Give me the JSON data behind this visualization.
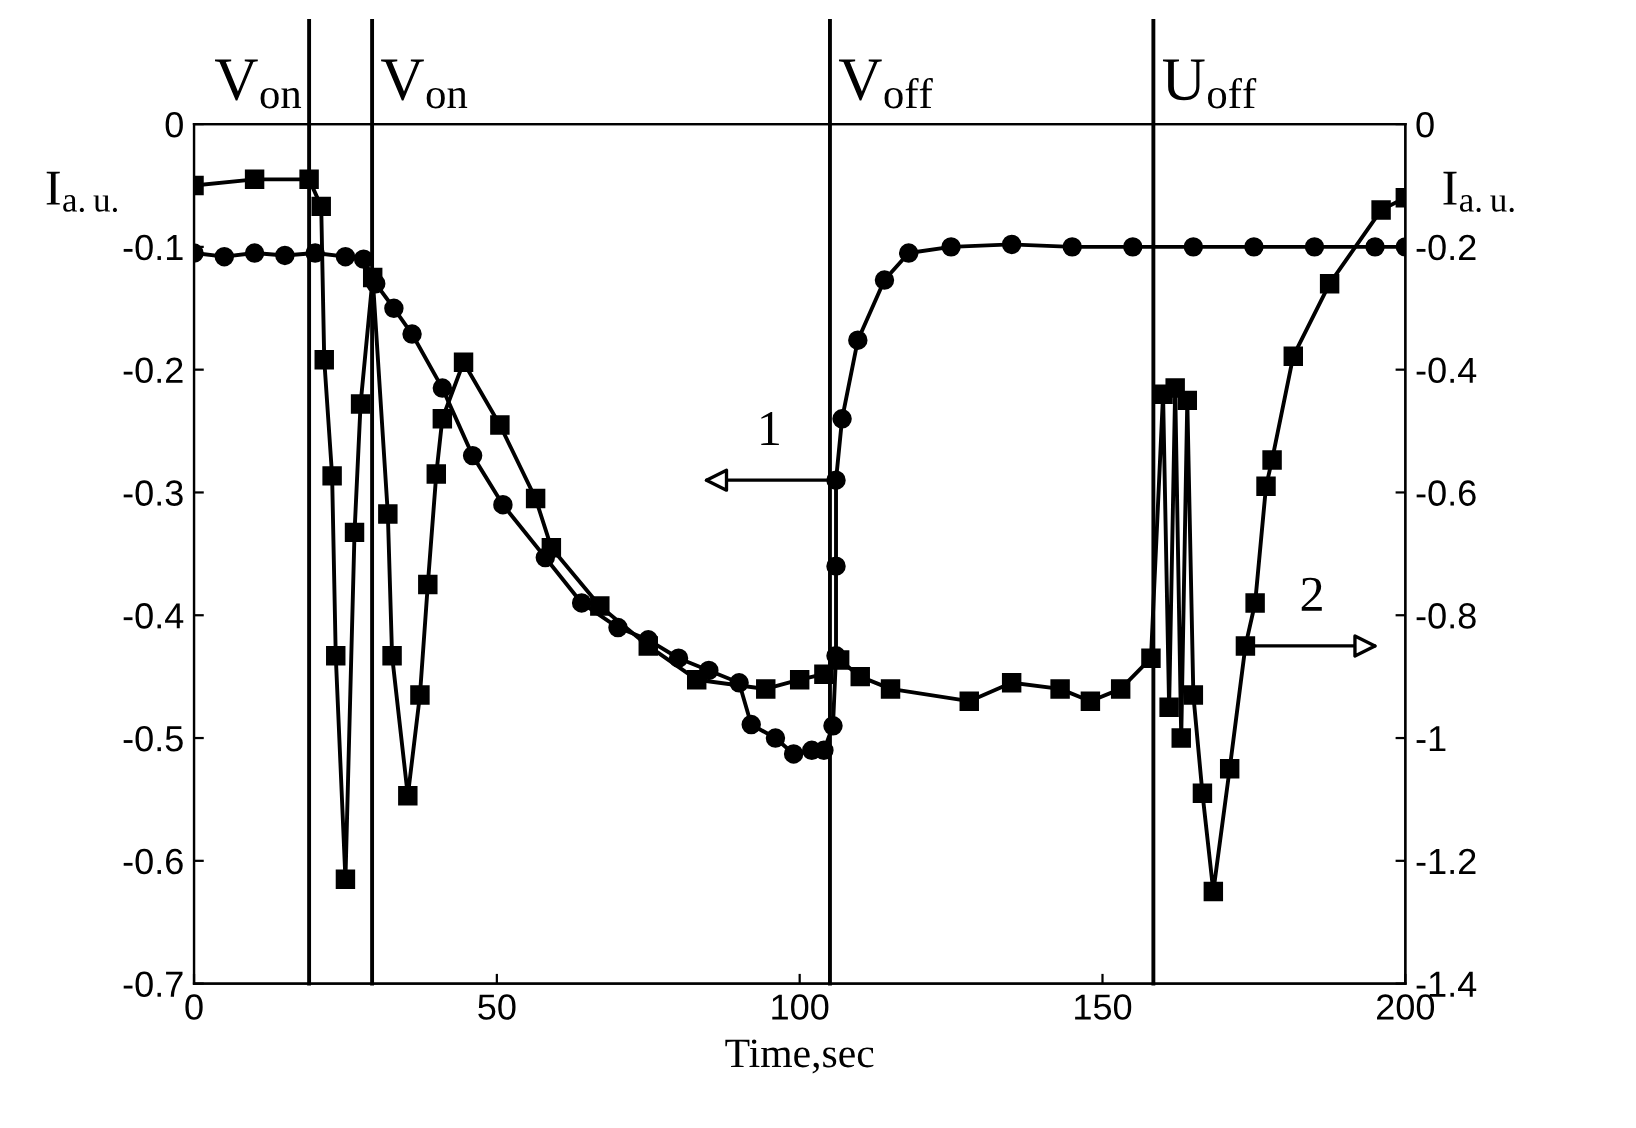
{
  "chart_data": {
    "type": "line",
    "xlabel": "Time,sec",
    "ylabel": "I$_{a.u.}$",
    "y2label": "I$_{a.u.}$",
    "series": [
      {
        "marker": "circle",
        "color": "#000000",
        "x": [
          0,
          5,
          10,
          15,
          20,
          25,
          28,
          30,
          33,
          36,
          41,
          46,
          51,
          58,
          64,
          70,
          75,
          80,
          85,
          90,
          92,
          96,
          99,
          102,
          104,
          105.5,
          106,
          106,
          106,
          107,
          109.6,
          114,
          118,
          125,
          135,
          145,
          155,
          165,
          175,
          185,
          195,
          200
        ],
        "values": [
          -0.105,
          -0.108,
          -0.105,
          -0.107,
          -0.105,
          -0.108,
          -0.11,
          -0.13,
          -0.15,
          -0.171,
          -0.215,
          -0.27,
          -0.31,
          -0.353,
          -0.39,
          -0.41,
          -0.42,
          -0.435,
          -0.445,
          -0.455,
          -0.489,
          -0.5,
          -0.513,
          -0.51,
          -0.51,
          -0.49,
          -0.433,
          -0.36,
          -0.29,
          -0.24,
          -0.176,
          -0.127,
          -0.105,
          -0.1,
          -0.098,
          -0.1,
          -0.1,
          -0.1,
          -0.1,
          -0.1,
          -0.1,
          -0.1
        ]
      },
      {
        "marker": "square",
        "color": "#000000",
        "axis": "y2",
        "x": [
          0,
          10,
          19,
          21,
          21.5,
          22.8,
          23.4,
          25,
          26.5,
          27.5,
          29.5,
          32,
          32.7,
          35.3,
          37.3,
          38.6,
          40,
          41,
          44.5,
          50.5,
          56.4,
          59,
          67,
          75,
          83,
          94.4,
          100,
          104,
          106.6,
          110,
          115,
          128,
          135,
          143,
          148,
          153,
          158,
          160,
          161,
          162,
          163,
          164,
          165,
          166.5,
          168.3,
          171,
          173.6,
          175.2,
          177,
          178,
          181.5,
          187.5,
          196,
          200
        ],
        "values": [
          -0.1,
          -0.09,
          -0.09,
          -0.134,
          -0.384,
          -0.573,
          -0.866,
          -1.23,
          -0.665,
          -0.456,
          -0.25,
          -0.635,
          -0.866,
          -1.094,
          -0.93,
          -0.75,
          -0.57,
          -0.48,
          -0.388,
          -0.49,
          -0.61,
          -0.69,
          -0.785,
          -0.85,
          -0.905,
          -0.92,
          -0.905,
          -0.896,
          -0.873,
          -0.9,
          -0.92,
          -0.94,
          -0.91,
          -0.92,
          -0.94,
          -0.92,
          -0.87,
          -0.44,
          -0.95,
          -0.43,
          -1.0,
          -0.45,
          -0.93,
          -1.09,
          -1.25,
          -1.05,
          -0.85,
          -0.78,
          -0.59,
          -0.547,
          -0.378,
          -0.26,
          -0.14,
          -0.12
        ]
      }
    ],
    "xlim": [
      0,
      200
    ],
    "xticks": [
      0,
      50,
      100,
      150,
      200
    ],
    "ylim": [
      -0.7,
      0
    ],
    "yticks": [
      0,
      -0.1,
      -0.2,
      -0.3,
      -0.4,
      -0.5,
      -0.6,
      -0.7
    ],
    "y2lim": [
      -1.4,
      0
    ],
    "y2ticks": [
      0,
      -0.2,
      -0.4,
      -0.6,
      -0.8,
      -1,
      -1.2,
      -1.4
    ],
    "ref_lines": [
      {
        "axis": "x",
        "value": 19,
        "label": "V$_{on}$",
        "color": "#000000"
      },
      {
        "axis": "x",
        "value": 29.4,
        "label": "V$_{on}$",
        "color": "#000000"
      },
      {
        "axis": "x",
        "value": 105,
        "label": "V$_{off}$",
        "color": "#000000"
      },
      {
        "axis": "x",
        "value": 158.4,
        "label": "U$_{off}$",
        "color": "#000000"
      }
    ],
    "annotations": [
      {
        "text": "1",
        "x": 106,
        "y": -0.29
      },
      {
        "text": "2",
        "x": 173.6,
        "y": -0.425
      }
    ],
    "grid": false
  }
}
